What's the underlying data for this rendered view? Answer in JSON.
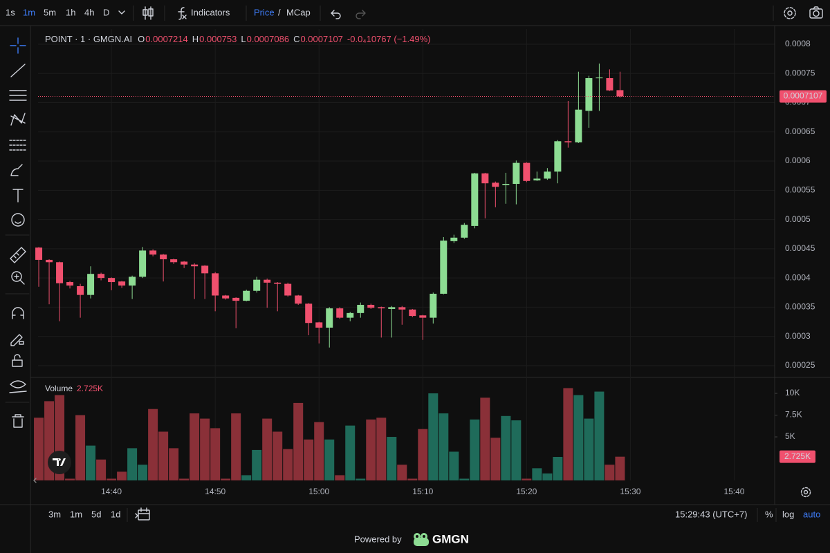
{
  "ui": {
    "intervals": [
      "1s",
      "1m",
      "5m",
      "1h",
      "4h",
      "D"
    ],
    "indicators": "Indicators",
    "price": "Price",
    "slash": "/",
    "mcap": "MCap",
    "ranges": [
      "3m",
      "1m",
      "5d",
      "1d"
    ],
    "clock": "15:29:43 (UTC+7)",
    "scale_options": [
      "%",
      "log",
      "auto"
    ],
    "powered": "Powered by",
    "brand": "GMGN"
  },
  "chart_data": [
    {
      "type": "candlestick",
      "title": "POINT · 1 · GMGN.AI",
      "ohlc_labels": [
        "O",
        "H",
        "L",
        "C"
      ],
      "change": "-0.0₄10767 (−1.49%)",
      "up_color": "#8ddc93",
      "down_color": "#f0506e",
      "open": [
        0.000452,
        0.000431,
        0.000427,
        0.000393,
        0.000386,
        0.000371,
        0.000407,
        0.0004,
        0.000394,
        0.000387,
        0.000402,
        0.000447,
        0.00044,
        0.000432,
        0.000428,
        0.000423,
        0.000421,
        0.000408,
        0.00037,
        0.000366,
        0.000361,
        0.000378,
        0.000397,
        0.000392,
        0.00039,
        0.00037,
        0.000356,
        0.000324,
        0.000315,
        0.000348,
        0.000332,
        0.00034,
        0.000354,
        0.00035,
        0.000347,
        0.00035,
        0.000346,
        0.000336,
        0.000332,
        0.000373,
        0.000463,
        0.000469,
        0.000489,
        0.000579,
        0.000563,
        0.000559,
        0.000561,
        0.000597,
        0.000567,
        0.00057,
        0.000582,
        0.000634,
        0.000632,
        0.000686,
        0.000742,
        0.000742,
        0.0007214
      ],
      "high": [
        0.000453,
        0.000432,
        0.000428,
        0.000395,
        0.00039,
        0.00042,
        0.000409,
        0.000401,
        0.000395,
        0.000404,
        0.000453,
        0.000449,
        0.000441,
        0.000433,
        0.000429,
        0.000425,
        0.000422,
        0.00041,
        0.000371,
        0.000367,
        0.00038,
        0.000402,
        0.000399,
        0.000393,
        0.000392,
        0.000371,
        0.000357,
        0.000325,
        0.00035,
        0.00035,
        0.000342,
        0.000358,
        0.000356,
        0.000351,
        0.000352,
        0.000352,
        0.000347,
        0.000337,
        0.000375,
        0.00047,
        0.000474,
        0.000494,
        0.00058,
        0.00058,
        0.000565,
        0.00058,
        0.000601,
        0.000598,
        0.000582,
        0.000588,
        0.000636,
        0.000703,
        0.000753,
        0.000746,
        0.000767,
        0.000757,
        0.000753
      ],
      "low": [
        0.000385,
        0.000355,
        0.000326,
        0.000382,
        0.000332,
        0.000365,
        0.000396,
        0.000379,
        0.000383,
        0.000364,
        0.0004,
        0.000437,
        0.000394,
        0.000424,
        0.000417,
        0.000364,
        0.000364,
        0.000343,
        0.000363,
        0.000314,
        0.00036,
        0.000375,
        0.000349,
        0.000343,
        0.000368,
        0.000354,
        0.000302,
        0.000288,
        0.000281,
        0.00033,
        0.000326,
        0.000332,
        0.000347,
        0.000298,
        0.000298,
        0.00032,
        0.000333,
        0.000294,
        0.000322,
        0.000372,
        0.00046,
        0.000467,
        0.000485,
        0.000502,
        0.000521,
        0.000527,
        0.000526,
        0.000564,
        0.000566,
        0.000568,
        0.000562,
        0.000623,
        0.000631,
        0.000657,
        0.000686,
        0.00072,
        0.0007086
      ],
      "close": [
        0.000431,
        0.000427,
        0.000391,
        0.000387,
        0.000371,
        0.000407,
        0.0004,
        0.000393,
        0.000387,
        0.000402,
        0.000447,
        0.00044,
        0.000432,
        0.000427,
        0.000423,
        0.00042,
        0.000408,
        0.00037,
        0.000365,
        0.000361,
        0.000378,
        0.000397,
        0.000392,
        0.00039,
        0.00037,
        0.000356,
        0.000323,
        0.000315,
        0.000348,
        0.000332,
        0.00034,
        0.000354,
        0.000349,
        0.000348,
        0.00035,
        0.000346,
        0.000335,
        0.000332,
        0.000373,
        0.000464,
        0.000469,
        0.000491,
        0.000579,
        0.000562,
        0.000556,
        0.000561,
        0.000597,
        0.000566,
        0.00057,
        0.000582,
        0.000634,
        0.000632,
        0.000688,
        0.000742,
        0.000743,
        0.000721,
        0.0007107
      ],
      "xlim": [
        -0.07,
        70.9
      ],
      "xticks": [
        {
          "value": 7,
          "label": "14:40"
        },
        {
          "value": 17,
          "label": "14:50"
        },
        {
          "value": 27,
          "label": "15:00"
        },
        {
          "value": 37,
          "label": "15:10"
        },
        {
          "value": 47,
          "label": "15:20"
        },
        {
          "value": 57,
          "label": "15:30"
        },
        {
          "value": 67,
          "label": "15:40"
        }
      ],
      "ylim": [
        0.000231,
        0.000826
      ],
      "yticks": [
        0.0008,
        0.00075,
        0.0007,
        0.00065,
        0.0006,
        0.00055,
        0.0005,
        0.00045,
        0.0004,
        0.00035,
        0.0003,
        0.00025
      ],
      "grid": true
    },
    {
      "type": "bar",
      "name": "Volume",
      "up_color": "#1f6b5a",
      "down_color": "#8a3038",
      "values": [
        7200,
        9100,
        9800,
        200,
        7500,
        4000,
        2400,
        200,
        1000,
        3700,
        1800,
        8200,
        5600,
        3700,
        200,
        7700,
        7100,
        6000,
        200,
        7700,
        600,
        3500,
        7100,
        5600,
        3600,
        8900,
        4700,
        6700,
        4700,
        600,
        6300,
        200,
        7000,
        7200,
        5000,
        1800,
        200,
        5900,
        10000,
        7700,
        3300,
        200,
        7000,
        9500,
        4900,
        7400,
        6900,
        200,
        1400,
        800,
        2700,
        10600,
        9800,
        7100,
        10200,
        1800,
        2725
      ],
      "value_labels": [
        null,
        null,
        null,
        null,
        null,
        null,
        null,
        null,
        null,
        null,
        null,
        null,
        null,
        null,
        null,
        null,
        null,
        null,
        null,
        null,
        null,
        null,
        null,
        null,
        null,
        null,
        null,
        null,
        null,
        null,
        null,
        null,
        null,
        null,
        null,
        null,
        null,
        null,
        null,
        null,
        null,
        null,
        null,
        null,
        null,
        null,
        null,
        null,
        null,
        null,
        null,
        null,
        null,
        null,
        null,
        null,
        "2.725K"
      ],
      "ylim": [
        0,
        11750
      ],
      "yticks": [
        {
          "value": 5000,
          "label": "5K"
        },
        {
          "value": 7500,
          "label": "7.5K"
        },
        {
          "value": 10000,
          "label": "10K"
        }
      ]
    }
  ]
}
